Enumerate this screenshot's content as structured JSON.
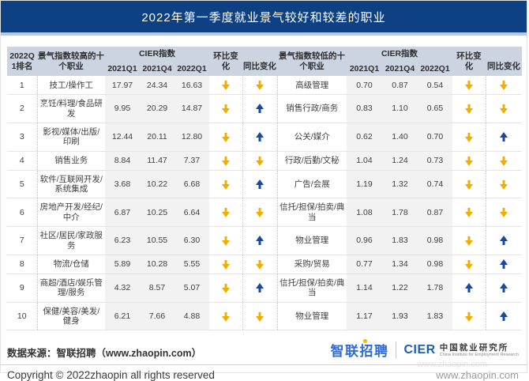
{
  "colors": {
    "header_blue": "#0D4183",
    "accent_strip": "#B9C8DC",
    "table_header_bg": "#CCD4E2",
    "value_column_bg": "#F2F2F3",
    "arrow_down_yellow": "#F0AF00",
    "arrow_up_blue": "#17499E",
    "zhaopin_logo_blue": "#2E6BD6",
    "logo_dot_yellow": "#F5B500"
  },
  "chart_data": {
    "type": "table",
    "title": "2022年第一季度就业景气较好和较差的职业",
    "headers": {
      "rank": "2022Q1排名",
      "high_group": "景气指数较高的十个职业",
      "low_group": "景气指数较低的十个职业",
      "cier": "CIER指数",
      "q_2021q1": "2021Q1",
      "q_2021q4": "2021Q4",
      "q_2022q1": "2022Q1",
      "mom": "环比变化",
      "yoy": "同比变化"
    },
    "rows": [
      {
        "rank": "1",
        "high": {
          "name": "技工/操作工",
          "v2021q1": "17.97",
          "v2021q4": "24.34",
          "v2022q1": "16.63",
          "mom": "down",
          "yoy": "down"
        },
        "low": {
          "name": "高级管理",
          "v2021q1": "0.70",
          "v2021q4": "0.87",
          "v2022q1": "0.54",
          "mom": "down",
          "yoy": "down"
        }
      },
      {
        "rank": "2",
        "high": {
          "name": "烹饪/料理/食品研发",
          "v2021q1": "9.95",
          "v2021q4": "20.29",
          "v2022q1": "14.87",
          "mom": "down",
          "yoy": "up"
        },
        "low": {
          "name": "销售行政/商务",
          "v2021q1": "0.83",
          "v2021q4": "1.10",
          "v2022q1": "0.65",
          "mom": "down",
          "yoy": "down"
        }
      },
      {
        "rank": "3",
        "high": {
          "name": "影视/媒体/出版/印刷",
          "v2021q1": "12.44",
          "v2021q4": "20.11",
          "v2022q1": "12.80",
          "mom": "down",
          "yoy": "up"
        },
        "low": {
          "name": "公关/媒介",
          "v2021q1": "0.62",
          "v2021q4": "1.40",
          "v2022q1": "0.70",
          "mom": "down",
          "yoy": "up"
        }
      },
      {
        "rank": "4",
        "high": {
          "name": "销售业务",
          "v2021q1": "8.84",
          "v2021q4": "11.47",
          "v2022q1": "7.37",
          "mom": "down",
          "yoy": "down"
        },
        "low": {
          "name": "行政/后勤/文秘",
          "v2021q1": "1.04",
          "v2021q4": "1.24",
          "v2022q1": "0.73",
          "mom": "down",
          "yoy": "down"
        }
      },
      {
        "rank": "5",
        "high": {
          "name": "软件/互联网开发/系统集成",
          "v2021q1": "3.68",
          "v2021q4": "10.22",
          "v2022q1": "6.68",
          "mom": "down",
          "yoy": "up"
        },
        "low": {
          "name": "广告/会展",
          "v2021q1": "1.19",
          "v2021q4": "1.32",
          "v2022q1": "0.74",
          "mom": "down",
          "yoy": "down"
        }
      },
      {
        "rank": "6",
        "high": {
          "name": "房地产开发/经纪/中介",
          "v2021q1": "6.87",
          "v2021q4": "10.25",
          "v2022q1": "6.64",
          "mom": "down",
          "yoy": "down"
        },
        "low": {
          "name": "信托/担保/拍卖/典当",
          "v2021q1": "1.08",
          "v2021q4": "1.78",
          "v2022q1": "0.87",
          "mom": "down",
          "yoy": "down"
        }
      },
      {
        "rank": "7",
        "high": {
          "name": "社区/居民/家政服务",
          "v2021q1": "6.23",
          "v2021q4": "10.55",
          "v2022q1": "6.30",
          "mom": "down",
          "yoy": "up"
        },
        "low": {
          "name": "物业管理",
          "v2021q1": "0.96",
          "v2021q4": "1.83",
          "v2022q1": "0.98",
          "mom": "down",
          "yoy": "up"
        }
      },
      {
        "rank": "8",
        "high": {
          "name": "物流/仓储",
          "v2021q1": "5.89",
          "v2021q4": "10.28",
          "v2022q1": "5.55",
          "mom": "down",
          "yoy": "down"
        },
        "low": {
          "name": "采购/贸易",
          "v2021q1": "0.77",
          "v2021q4": "1.34",
          "v2022q1": "0.98",
          "mom": "down",
          "yoy": "up"
        }
      },
      {
        "rank": "9",
        "high": {
          "name": "商超/酒店/娱乐管理/服务",
          "v2021q1": "4.32",
          "v2021q4": "8.57",
          "v2022q1": "5.07",
          "mom": "down",
          "yoy": "up"
        },
        "low": {
          "name": "信托/担保/拍卖/典当",
          "v2021q1": "1.14",
          "v2021q4": "1.22",
          "v2022q1": "1.78",
          "mom": "up",
          "yoy": "up"
        }
      },
      {
        "rank": "10",
        "high": {
          "name": "保健/美容/美发/健身",
          "v2021q1": "6.21",
          "v2021q4": "7.66",
          "v2022q1": "4.88",
          "mom": "down",
          "yoy": "down"
        },
        "low": {
          "name": "物业管理",
          "v2021q1": "1.17",
          "v2021q4": "1.93",
          "v2022q1": "1.83",
          "mom": "down",
          "yoy": "up"
        }
      }
    ]
  },
  "footer": {
    "source": "数据来源：智联招聘（www.zhaopin.com）",
    "copyright": "Copyright © 2022zhaopin all rights reserved",
    "watermark": "www.zhaopin.com",
    "zhaopin_logo_text": "智联招聘",
    "cier_logo_text": "CIER",
    "cier_org_cn": "中国就业研究所",
    "cier_org_en": "China Institute for Employment Research"
  }
}
